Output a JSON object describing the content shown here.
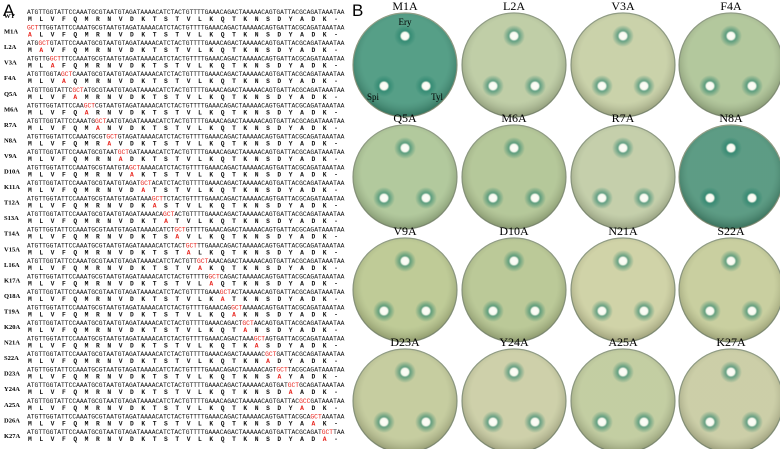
{
  "panel_labels": [
    "A",
    "B"
  ],
  "panel_a": {
    "rows": [
      {
        "label": "WT",
        "dna": [
          {
            "text": "ATGTTGGTATTCCAAATGCGTAATGTAGATAAAACATCTACTGTTTTGAAACAGACTAAAAACAGTGATTACGCAGATAAATAA"
          }
        ],
        "protein": [
          {
            "text": "M L V F Q M R N V D K T S T V L K Q T K N S D Y A D K -"
          }
        ]
      },
      {
        "label": "M1A",
        "dna": [
          {
            "text": "GCT",
            "color": "#e8221b"
          },
          {
            "text": "TTGGTATTCCAAATGCGTAATGTAGATAAAACATCTACTGTTTTGAAACAGACTAAAAACAGTGATTACGCAGATAAATAA"
          }
        ],
        "protein": [
          {
            "text": "A",
            "color": "#e8221b"
          },
          {
            "text": " L V F Q M R N V D K T S T V L K Q T K N S D Y A D K -"
          }
        ]
      },
      {
        "label": "L2A",
        "dna": [
          {
            "text": "ATG"
          },
          {
            "text": "GCT",
            "color": "#e8221b"
          },
          {
            "text": "GTATTCCAAATGCGTAATGTAGATAAAACATCTACTGTTTTGAAACAGACTAAAAACAGTGATTACGCAGATAAATAA"
          }
        ],
        "protein": [
          {
            "text": "M "
          },
          {
            "text": "A",
            "color": "#e8221b"
          },
          {
            "text": " V F Q M R N V D K T S T V L K Q T K N S D Y A D K -"
          }
        ]
      },
      {
        "label": "V3A",
        "dna": [
          {
            "text": "ATGTTG"
          },
          {
            "text": "GCT",
            "color": "#e8221b"
          },
          {
            "text": "TTCCAAATGCGTAATGTAGATAAAACATCTACTGTTTTGAAACAGACTAAAAACAGTGATTACGCAGATAAATAA"
          }
        ],
        "protein": [
          {
            "text": "M L "
          },
          {
            "text": "A",
            "color": "#e8221b"
          },
          {
            "text": " F Q M R N V D K T S T V L K Q T K N S D Y A D K -"
          }
        ]
      },
      {
        "label": "F4A",
        "dna": [
          {
            "text": "ATGTTGGTA"
          },
          {
            "text": "GCT",
            "color": "#e8221b"
          },
          {
            "text": "CAAATGCGTAATGTAGATAAAACATCTACTGTTTTGAAACAGACTAAAAACAGTGATTACGCAGATAAATAA"
          }
        ],
        "protein": [
          {
            "text": "M L V "
          },
          {
            "text": "A",
            "color": "#e8221b"
          },
          {
            "text": " Q M R N V D K T S T V L K Q T K N S D Y A D K -"
          }
        ]
      },
      {
        "label": "Q5A",
        "dna": [
          {
            "text": "ATGTTGGTATTC"
          },
          {
            "text": "GCT",
            "color": "#e8221b"
          },
          {
            "text": "ATGCGTAATGTAGATAAAACATCTACTGTTTTGAAACAGACTAAAAACAGTGATTACGCAGATAAATAA"
          }
        ],
        "protein": [
          {
            "text": "M L V F "
          },
          {
            "text": "A",
            "color": "#e8221b"
          },
          {
            "text": " M R N V D K T S T V L K Q T K N S D Y A D K -"
          }
        ]
      },
      {
        "label": "M6A",
        "dna": [
          {
            "text": "ATGTTGGTATTCCAA"
          },
          {
            "text": "GCT",
            "color": "#e8221b"
          },
          {
            "text": "CGTAATGTAGATAAAACATCTACTGTTTTGAAACAGACTAAAAACAGTGATTACGCAGATAAATAA"
          }
        ],
        "protein": [
          {
            "text": "M L V F Q "
          },
          {
            "text": "A",
            "color": "#e8221b"
          },
          {
            "text": " R N V D K T S T V L K Q T K N S D Y A D K -"
          }
        ]
      },
      {
        "label": "R7A",
        "dna": [
          {
            "text": "ATGTTGGTATTCCAAATG"
          },
          {
            "text": "GCT",
            "color": "#e8221b"
          },
          {
            "text": "AATGTAGATAAAACATCTACTGTTTTGAAACAGACTAAAAACAGTGATTACGCAGATAAATAA"
          }
        ],
        "protein": [
          {
            "text": "M L V F Q M "
          },
          {
            "text": "A",
            "color": "#e8221b"
          },
          {
            "text": " N V D K T S T V L K Q T K N S D Y A D K -"
          }
        ]
      },
      {
        "label": "N8A",
        "dna": [
          {
            "text": "ATGTTGGTATTCCAAATGCGT"
          },
          {
            "text": "GCT",
            "color": "#e8221b"
          },
          {
            "text": "GTAGATAAAACATCTACTGTTTTGAAACAGACTAAAAACAGTGATTACGCAGATAAATAA"
          }
        ],
        "protein": [
          {
            "text": "M L V F Q M R "
          },
          {
            "text": "A",
            "color": "#e8221b"
          },
          {
            "text": " V D K T S T V L K Q T K N S D Y A D K -"
          }
        ]
      },
      {
        "label": "V9A",
        "dna": [
          {
            "text": "ATGTTGGTATTCCAAATGCGTAAT"
          },
          {
            "text": "GCT",
            "color": "#e8221b"
          },
          {
            "text": "GATAAAACATCTACTGTTTTGAAACAGACTAAAAACAGTGATTACGCAGATAAATAA"
          }
        ],
        "protein": [
          {
            "text": "M L V F Q M R N "
          },
          {
            "text": "A",
            "color": "#e8221b"
          },
          {
            "text": " D K T S T V L K Q T K N S D Y A D K -"
          }
        ]
      },
      {
        "label": "D10A",
        "dna": [
          {
            "text": "ATGTTGGTATTCCAAATGCGTAATGTA"
          },
          {
            "text": "GCT",
            "color": "#e8221b"
          },
          {
            "text": "AAAACATCTACTGTTTTGAAACAGACTAAAAACAGTGATTACGCAGATAAATAA"
          }
        ],
        "protein": [
          {
            "text": "M L V F Q M R N V "
          },
          {
            "text": "A",
            "color": "#e8221b"
          },
          {
            "text": " K T S T V L K Q T K N S D Y A D K -"
          }
        ]
      },
      {
        "label": "K11A",
        "dna": [
          {
            "text": "ATGTTGGTATTCCAAATGCGTAATGTAGAT"
          },
          {
            "text": "GCT",
            "color": "#e8221b"
          },
          {
            "text": "ACATCTACTGTTTTGAAACAGACTAAAAACAGTGATTACGCAGATAAATAA"
          }
        ],
        "protein": [
          {
            "text": "M L V F Q M R N V D "
          },
          {
            "text": "A",
            "color": "#e8221b"
          },
          {
            "text": " T S T V L K Q T K N S D Y A D K -"
          }
        ]
      },
      {
        "label": "T12A",
        "dna": [
          {
            "text": "ATGTTGGTATTCCAAATGCGTAATGTAGATAAA"
          },
          {
            "text": "GCT",
            "color": "#e8221b"
          },
          {
            "text": "TCTACTGTTTTGAAACAGACTAAAAACAGTGATTACGCAGATAAATAA"
          }
        ],
        "protein": [
          {
            "text": "M L V F Q M R N V D K "
          },
          {
            "text": "A",
            "color": "#e8221b"
          },
          {
            "text": " S T V L K Q T K N S D Y A D K -"
          }
        ]
      },
      {
        "label": "S13A",
        "dna": [
          {
            "text": "ATGTTGGTATTCCAAATGCGTAATGTAGATAAAACA"
          },
          {
            "text": "GCT",
            "color": "#e8221b"
          },
          {
            "text": "ACTGTTTTGAAACAGACTAAAAACAGTGATTACGCAGATAAATAA"
          }
        ],
        "protein": [
          {
            "text": "M L V F Q M R N V D K T "
          },
          {
            "text": "A",
            "color": "#e8221b"
          },
          {
            "text": " T V L K Q T K N S D Y A D K -"
          }
        ]
      },
      {
        "label": "T14A",
        "dna": [
          {
            "text": "ATGTTGGTATTCCAAATGCGTAATGTAGATAAAACATCT"
          },
          {
            "text": "GCT",
            "color": "#e8221b"
          },
          {
            "text": "GTTTTGAAACAGACTAAAAACAGTGATTACGCAGATAAATAA"
          }
        ],
        "protein": [
          {
            "text": "M L V F Q M R N V D K T S "
          },
          {
            "text": "A",
            "color": "#e8221b"
          },
          {
            "text": " V L K Q T K N S D Y A D K -"
          }
        ]
      },
      {
        "label": "V15A",
        "dna": [
          {
            "text": "ATGTTGGTATTCCAAATGCGTAATGTAGATAAAACATCTACT"
          },
          {
            "text": "GCT",
            "color": "#e8221b"
          },
          {
            "text": "TTGAAACAGACTAAAAACAGTGATTACGCAGATAAATAA"
          }
        ],
        "protein": [
          {
            "text": "M L V F Q M R N V D K T S T "
          },
          {
            "text": "A",
            "color": "#e8221b"
          },
          {
            "text": " L K Q T K N S D Y A D K -"
          }
        ]
      },
      {
        "label": "L16A",
        "dna": [
          {
            "text": "ATGTTGGTATTCCAAATGCGTAATGTAGATAAAACATCTACTGTT"
          },
          {
            "text": "GCT",
            "color": "#e8221b"
          },
          {
            "text": "AAACAGACTAAAAACAGTGATTACGCAGATAAATAA"
          }
        ],
        "protein": [
          {
            "text": "M L V F Q M R N V D K T S T V "
          },
          {
            "text": "A",
            "color": "#e8221b"
          },
          {
            "text": " K Q T K N S D Y A D K -"
          }
        ]
      },
      {
        "label": "K17A",
        "dna": [
          {
            "text": "ATGTTGGTATTCCAAATGCGTAATGTAGATAAAACATCTACTGTTTTG"
          },
          {
            "text": "GCT",
            "color": "#e8221b"
          },
          {
            "text": "CAGACTAAAAACAGTGATTACGCAGATAAATAA"
          }
        ],
        "protein": [
          {
            "text": "M L V F Q M R N V D K T S T V L "
          },
          {
            "text": "A",
            "color": "#e8221b"
          },
          {
            "text": " Q T K N S D Y A D K -"
          }
        ]
      },
      {
        "label": "Q18A",
        "dna": [
          {
            "text": "ATGTTGGTATTCCAAATGCGTAATGTAGATAAAACATCTACTGTTTTGAAA"
          },
          {
            "text": "GCT",
            "color": "#e8221b"
          },
          {
            "text": "ACTAAAAACAGTGATTACGCAGATAAATAA"
          }
        ],
        "protein": [
          {
            "text": "M L V F Q M R N V D K T S T V L K "
          },
          {
            "text": "A",
            "color": "#e8221b"
          },
          {
            "text": " T K N S D Y A D K -"
          }
        ]
      },
      {
        "label": "T19A",
        "dna": [
          {
            "text": "ATGTTGGTATTCCAAATGCGTAATGTAGATAAAACATCTACTGTTTTGAAACAG"
          },
          {
            "text": "GCT",
            "color": "#e8221b"
          },
          {
            "text": "AAAAACAGTGATTACGCAGATAAATAA"
          }
        ],
        "protein": [
          {
            "text": "M L V F Q M R N V D K T S T V L K Q "
          },
          {
            "text": "A",
            "color": "#e8221b"
          },
          {
            "text": " K N S D Y A D K -"
          }
        ]
      },
      {
        "label": "K20A",
        "dna": [
          {
            "text": "ATGTTGGTATTCCAAATGCGTAATGTAGATAAAACATCTACTGTTTTGAAACAGACT"
          },
          {
            "text": "GCT",
            "color": "#e8221b"
          },
          {
            "text": "AACAGTGATTACGCAGATAAATAA"
          }
        ],
        "protein": [
          {
            "text": "M L V F Q M R N V D K T S T V L K Q T "
          },
          {
            "text": "A",
            "color": "#e8221b"
          },
          {
            "text": " N S D Y A D K -"
          }
        ]
      },
      {
        "label": "N21A",
        "dna": [
          {
            "text": "ATGTTGGTATTCCAAATGCGTAATGTAGATAAAACATCTACTGTTTTGAAACAGACTAAA"
          },
          {
            "text": "GCT",
            "color": "#e8221b"
          },
          {
            "text": "AGTGATTACGCAGATAAATAA"
          }
        ],
        "protein": [
          {
            "text": "M L V F Q M R N V D K T S T V L K Q T K "
          },
          {
            "text": "A",
            "color": "#e8221b"
          },
          {
            "text": " S D Y A D K -"
          }
        ]
      },
      {
        "label": "S22A",
        "dna": [
          {
            "text": "ATGTTGGTATTCCAAATGCGTAATGTAGATAAAACATCTACTGTTTTGAAACAGACTAAAAAC"
          },
          {
            "text": "GCT",
            "color": "#e8221b"
          },
          {
            "text": "GATTACGCAGATAAATAA"
          }
        ],
        "protein": [
          {
            "text": "M L V F Q M R N V D K T S T V L K Q T K N "
          },
          {
            "text": "A",
            "color": "#e8221b"
          },
          {
            "text": " D Y A D K -"
          }
        ]
      },
      {
        "label": "D23A",
        "dna": [
          {
            "text": "ATGTTGGTATTCCAAATGCGTAATGTAGATAAAACATCTACTGTTTTGAAACAGACTAAAAACAGT"
          },
          {
            "text": "GCT",
            "color": "#e8221b"
          },
          {
            "text": "TACGCAGATAAATAA"
          }
        ],
        "protein": [
          {
            "text": "M L V F Q M R N V D K T S T V L K Q T K N S "
          },
          {
            "text": "A",
            "color": "#e8221b"
          },
          {
            "text": " Y A D K -"
          }
        ]
      },
      {
        "label": "Y24A",
        "dna": [
          {
            "text": "ATGTTGGTATTCCAAATGCGTAATGTAGATAAAACATCTACTGTTTTGAAACAGACTAAAAACAGTGAT"
          },
          {
            "text": "GCT",
            "color": "#e8221b"
          },
          {
            "text": "GCAGATAAATAA"
          }
        ],
        "protein": [
          {
            "text": "M L V F Q M R N V D K T S T V L K Q T K N S D "
          },
          {
            "text": "A",
            "color": "#e8221b"
          },
          {
            "text": " A D K -"
          }
        ]
      },
      {
        "label": "A25A",
        "dna": [
          {
            "text": "ATGTTGGTATTCCAAATGCGTAATGTAGATAAAACATCTACTGTTTTGAAACAGACTAAAAACAGTGATTAC"
          },
          {
            "text": "GCC",
            "color": "#e8221b"
          },
          {
            "text": "GATAAATAA"
          }
        ],
        "protein": [
          {
            "text": "M L V F Q M R N V D K T S T V L K Q T K N S D Y "
          },
          {
            "text": "A",
            "color": "#e8221b"
          },
          {
            "text": " D K -"
          }
        ]
      },
      {
        "label": "D26A",
        "dna": [
          {
            "text": "ATGTTGGTATTCCAAATGCGTAATGTAGATAAAACATCTACTGTTTTGAAACAGACTAAAAACAGTGATTACGCA"
          },
          {
            "text": "GCT",
            "color": "#e8221b"
          },
          {
            "text": "AAATAA"
          }
        ],
        "protein": [
          {
            "text": "M L V F Q M R N V D K T S T V L K Q T K N S D Y A "
          },
          {
            "text": "A",
            "color": "#e8221b"
          },
          {
            "text": " K -"
          }
        ]
      },
      {
        "label": "K27A",
        "dna": [
          {
            "text": "ATGTTGGTATTCCAAATGCGTAATGTAGATAAAACATCTACTGTTTTGAAACAGACTAAAAACAGTGATTACGCAGAT"
          },
          {
            "text": "GCT",
            "color": "#e8221b"
          },
          {
            "text": "TAA"
          }
        ],
        "protein": [
          {
            "text": "M L V F Q M R N V D K T S T V L K Q T K N S D Y A D "
          },
          {
            "text": "A",
            "color": "#e8221b"
          },
          {
            "text": " -"
          }
        ]
      }
    ]
  },
  "panel_b": {
    "well_labels": [
      "Ery",
      "Spi",
      "Tyl"
    ],
    "plates": [
      {
        "label": "M1A",
        "color": "#3f9277"
      },
      {
        "label": "L2A",
        "color": "#b7c79b"
      },
      {
        "label": "V3A",
        "color": "#c3cc9f"
      },
      {
        "label": "F4A",
        "color": "#a9c090"
      },
      {
        "label": "Q5A",
        "color": "#a8c290"
      },
      {
        "label": "M6A",
        "color": "#abc08c"
      },
      {
        "label": "R7A",
        "color": "#bdc9a0"
      },
      {
        "label": "N8A",
        "color": "#478f74"
      },
      {
        "label": "V9A",
        "color": "#b6c489"
      },
      {
        "label": "D10A",
        "color": "#b2c28a"
      },
      {
        "label": "N21A",
        "color": "#cacd9c"
      },
      {
        "label": "S22A",
        "color": "#c2c993"
      },
      {
        "label": "D23A",
        "color": "#bec693"
      },
      {
        "label": "Y24A",
        "color": "#c7ca9e"
      },
      {
        "label": "A25A",
        "color": "#bbc796"
      },
      {
        "label": "K27A",
        "color": "#c5c89c"
      }
    ]
  }
}
